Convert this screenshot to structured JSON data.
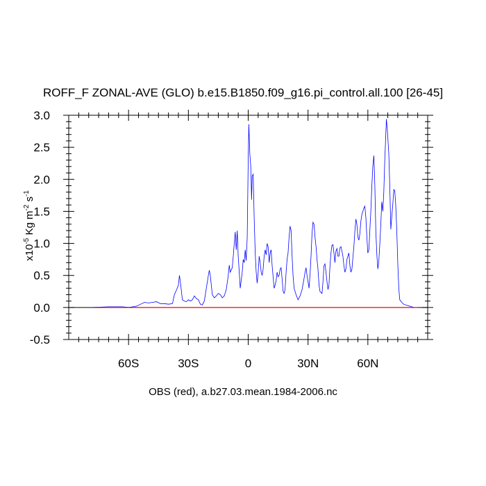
{
  "chart_data": {
    "type": "line",
    "title": "ROFF_F ZONAL-AVE (GLO) b.e15.B1850.f09_g16.pi_control.all.100 [26-45]",
    "xlabel": "OBS (red), a.b27.03.mean.1984-2006.nc",
    "ylabel_prefix": "x10",
    "ylabel_exp": "-5",
    "ylabel_unit1": " Kg m",
    "ylabel_exp2": "-2",
    "ylabel_unit2": " s",
    "ylabel_exp3": "-1",
    "xlim": [
      -90,
      90
    ],
    "ylim": [
      -0.5,
      3.0
    ],
    "yticks": [
      {
        "value": -0.5,
        "label": "-0.5"
      },
      {
        "value": 0.0,
        "label": "0.0"
      },
      {
        "value": 0.5,
        "label": "0.5"
      },
      {
        "value": 1.0,
        "label": "1.0"
      },
      {
        "value": 1.5,
        "label": "1.5"
      },
      {
        "value": 2.0,
        "label": "2.0"
      },
      {
        "value": 2.5,
        "label": "2.5"
      },
      {
        "value": 3.0,
        "label": "3.0"
      }
    ],
    "xticks": [
      {
        "value": -60,
        "label": "60S"
      },
      {
        "value": -30,
        "label": "30S"
      },
      {
        "value": 0,
        "label": "0"
      },
      {
        "value": 30,
        "label": "30N"
      },
      {
        "value": 60,
        "label": "60N"
      }
    ],
    "series": [
      {
        "color": "#0000ff",
        "points": [
          [
            -78,
            0.0
          ],
          [
            -70,
            0.01
          ],
          [
            -63,
            0.01
          ],
          [
            -60,
            0.0
          ],
          [
            -56,
            0.02
          ],
          [
            -54,
            0.05
          ],
          [
            -52,
            0.08
          ],
          [
            -50,
            0.07
          ],
          [
            -48,
            0.08
          ],
          [
            -46,
            0.09
          ],
          [
            -44,
            0.06
          ],
          [
            -42,
            0.06
          ],
          [
            -40,
            0.05
          ],
          [
            -38,
            0.06
          ],
          [
            -37,
            0.2
          ],
          [
            -36,
            0.27
          ],
          [
            -35,
            0.35
          ],
          [
            -34.5,
            0.5
          ],
          [
            -34,
            0.4
          ],
          [
            -33,
            0.12
          ],
          [
            -32,
            0.1
          ],
          [
            -31,
            0.09
          ],
          [
            -30,
            0.12
          ],
          [
            -29,
            0.1
          ],
          [
            -28,
            0.12
          ],
          [
            -27,
            0.18
          ],
          [
            -26,
            0.14
          ],
          [
            -25,
            0.12
          ],
          [
            -24,
            0.05
          ],
          [
            -23,
            0.04
          ],
          [
            -22,
            0.1
          ],
          [
            -21,
            0.3
          ],
          [
            -20,
            0.5
          ],
          [
            -19.5,
            0.58
          ],
          [
            -19,
            0.5
          ],
          [
            -18,
            0.2
          ],
          [
            -17,
            0.15
          ],
          [
            -16,
            0.18
          ],
          [
            -15,
            0.22
          ],
          [
            -14,
            0.2
          ],
          [
            -13,
            0.15
          ],
          [
            -12,
            0.18
          ],
          [
            -11,
            0.28
          ],
          [
            -10,
            0.5
          ],
          [
            -9.5,
            0.66
          ],
          [
            -9,
            0.55
          ],
          [
            -8,
            0.62
          ],
          [
            -7.5,
            0.8
          ],
          [
            -7,
            1.0
          ],
          [
            -6.5,
            1.18
          ],
          [
            -6,
            0.9
          ],
          [
            -5.5,
            1.2
          ],
          [
            -5,
            0.8
          ],
          [
            -4.5,
            0.55
          ],
          [
            -4,
            0.3
          ],
          [
            -3.5,
            0.42
          ],
          [
            -3,
            0.55
          ],
          [
            -2.5,
            0.75
          ],
          [
            -2,
            0.7
          ],
          [
            -1.5,
            0.9
          ],
          [
            -1,
            0.73
          ],
          [
            -0.5,
            1.1
          ],
          [
            0,
            2.3
          ],
          [
            0.3,
            2.86
          ],
          [
            0.8,
            2.4
          ],
          [
            1.3,
            2.2
          ],
          [
            1.7,
            1.68
          ],
          [
            2,
            2.05
          ],
          [
            2.5,
            2.08
          ],
          [
            3,
            1.4
          ],
          [
            3.5,
            0.85
          ],
          [
            4,
            0.55
          ],
          [
            4.5,
            0.38
          ],
          [
            5,
            0.55
          ],
          [
            5.5,
            0.8
          ],
          [
            6,
            0.7
          ],
          [
            6.5,
            0.55
          ],
          [
            7,
            0.5
          ],
          [
            7.5,
            0.6
          ],
          [
            8,
            0.8
          ],
          [
            8.5,
            0.9
          ],
          [
            9,
            0.82
          ],
          [
            9.5,
            1.0
          ],
          [
            10,
            0.95
          ],
          [
            10.5,
            0.7
          ],
          [
            11,
            0.85
          ],
          [
            11.5,
            0.9
          ],
          [
            12,
            0.65
          ],
          [
            12.5,
            0.48
          ],
          [
            13,
            0.3
          ],
          [
            13.5,
            0.35
          ],
          [
            14,
            0.42
          ],
          [
            14.5,
            0.55
          ],
          [
            15,
            0.48
          ],
          [
            15.5,
            0.5
          ],
          [
            16,
            0.6
          ],
          [
            16.5,
            0.62
          ],
          [
            17,
            0.45
          ],
          [
            17.5,
            0.25
          ],
          [
            18,
            0.22
          ],
          [
            18.5,
            0.28
          ],
          [
            19,
            0.55
          ],
          [
            19.5,
            0.75
          ],
          [
            20,
            0.85
          ],
          [
            20.5,
            1.1
          ],
          [
            21,
            1.27
          ],
          [
            21.5,
            1.2
          ],
          [
            22,
            0.8
          ],
          [
            22.5,
            0.5
          ],
          [
            23,
            0.3
          ],
          [
            24,
            0.2
          ],
          [
            25,
            0.12
          ],
          [
            26,
            0.18
          ],
          [
            27,
            0.28
          ],
          [
            28,
            0.45
          ],
          [
            28.5,
            0.55
          ],
          [
            29,
            0.62
          ],
          [
            29.5,
            0.5
          ],
          [
            30,
            0.4
          ],
          [
            30.5,
            0.3
          ],
          [
            31,
            0.5
          ],
          [
            31.5,
            0.8
          ],
          [
            32,
            1.15
          ],
          [
            32.5,
            1.33
          ],
          [
            33,
            1.3
          ],
          [
            33.5,
            1.1
          ],
          [
            34,
            0.95
          ],
          [
            34.5,
            0.75
          ],
          [
            35,
            0.6
          ],
          [
            35.5,
            0.35
          ],
          [
            36,
            0.25
          ],
          [
            37,
            0.22
          ],
          [
            37.5,
            0.4
          ],
          [
            38,
            0.65
          ],
          [
            38.5,
            0.68
          ],
          [
            39,
            0.55
          ],
          [
            39.5,
            0.4
          ],
          [
            40,
            0.28
          ],
          [
            40.5,
            0.35
          ],
          [
            41,
            0.65
          ],
          [
            41.5,
            0.85
          ],
          [
            42,
            0.97
          ],
          [
            42.5,
            0.98
          ],
          [
            43,
            0.85
          ],
          [
            43.5,
            0.7
          ],
          [
            44,
            0.88
          ],
          [
            44.5,
            0.92
          ],
          [
            45,
            0.8
          ],
          [
            45.5,
            0.8
          ],
          [
            46,
            0.93
          ],
          [
            46.5,
            0.95
          ],
          [
            47,
            0.88
          ],
          [
            47.5,
            0.8
          ],
          [
            48,
            0.65
          ],
          [
            48.5,
            0.55
          ],
          [
            49,
            0.6
          ],
          [
            49.5,
            0.75
          ],
          [
            50,
            0.8
          ],
          [
            50.5,
            0.85
          ],
          [
            51,
            0.65
          ],
          [
            51.5,
            0.55
          ],
          [
            52,
            0.6
          ],
          [
            52.5,
            0.78
          ],
          [
            53,
            0.95
          ],
          [
            53.5,
            1.2
          ],
          [
            54,
            1.38
          ],
          [
            54.5,
            1.3
          ],
          [
            55,
            1.1
          ],
          [
            55.5,
            1.05
          ],
          [
            56,
            1.15
          ],
          [
            56.5,
            1.35
          ],
          [
            57,
            1.45
          ],
          [
            57.5,
            1.5
          ],
          [
            58,
            1.55
          ],
          [
            58.5,
            1.58
          ],
          [
            59,
            1.4
          ],
          [
            59.5,
            1.1
          ],
          [
            60,
            0.85
          ],
          [
            60.5,
            0.9
          ],
          [
            61,
            1.2
          ],
          [
            61.5,
            1.5
          ],
          [
            62,
            1.9
          ],
          [
            62.5,
            2.2
          ],
          [
            63,
            2.37
          ],
          [
            63.5,
            1.9
          ],
          [
            64,
            1.2
          ],
          [
            64.5,
            0.82
          ],
          [
            65,
            0.6
          ],
          [
            65.5,
            0.72
          ],
          [
            66,
            1.0
          ],
          [
            66.5,
            1.3
          ],
          [
            67,
            1.65
          ],
          [
            67.5,
            1.5
          ],
          [
            68,
            1.8
          ],
          [
            68.5,
            2.3
          ],
          [
            69,
            2.7
          ],
          [
            69.3,
            2.94
          ],
          [
            69.7,
            2.8
          ],
          [
            70,
            2.65
          ],
          [
            70.5,
            2.4
          ],
          [
            71,
            1.9
          ],
          [
            71.5,
            1.22
          ],
          [
            72,
            1.42
          ],
          [
            72.5,
            1.6
          ],
          [
            73,
            1.84
          ],
          [
            73.5,
            1.82
          ],
          [
            74,
            1.6
          ],
          [
            74.5,
            1.2
          ],
          [
            75,
            0.7
          ],
          [
            75.5,
            0.3
          ],
          [
            76,
            0.12
          ],
          [
            77,
            0.08
          ],
          [
            78,
            0.05
          ],
          [
            80,
            0.03
          ],
          [
            82,
            0.01
          ],
          [
            83,
            0.0
          ]
        ]
      }
    ]
  }
}
